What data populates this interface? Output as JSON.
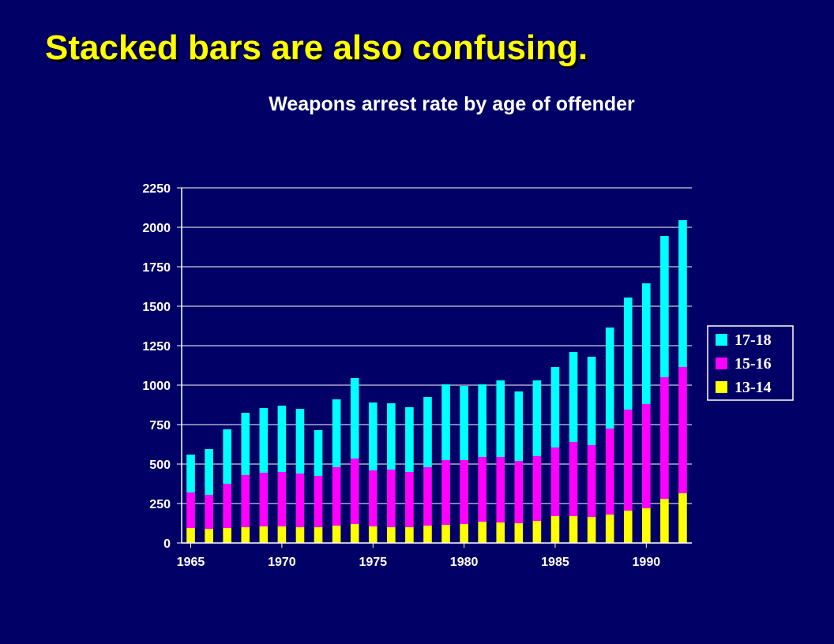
{
  "slide": {
    "title": "Stacked bars are also confusing."
  },
  "chart_data": {
    "type": "bar",
    "stacked": true,
    "title": "Weapons arrest rate by age of offender",
    "xlabel": "",
    "ylabel": "",
    "ylim": [
      0,
      2250
    ],
    "yticks": [
      0,
      250,
      500,
      750,
      1000,
      1250,
      1500,
      1750,
      2000,
      2250
    ],
    "xtick_labels": [
      "1965",
      "1970",
      "1975",
      "1980",
      "1985",
      "1990"
    ],
    "grid": true,
    "legend_position": "right",
    "categories": [
      1965,
      1966,
      1967,
      1968,
      1969,
      1970,
      1971,
      1972,
      1973,
      1974,
      1975,
      1976,
      1977,
      1978,
      1979,
      1980,
      1981,
      1982,
      1983,
      1984,
      1985,
      1986,
      1987,
      1988,
      1989,
      1990,
      1991,
      1992
    ],
    "series": [
      {
        "name": "13-14",
        "color": "#FFFF00",
        "values": [
          95,
          90,
          95,
          100,
          105,
          105,
          100,
          100,
          110,
          120,
          105,
          100,
          100,
          110,
          115,
          120,
          135,
          130,
          125,
          140,
          170,
          170,
          165,
          180,
          205,
          220,
          280,
          315
        ]
      },
      {
        "name": "15-16",
        "color": "#FF00FF",
        "values": [
          225,
          215,
          280,
          330,
          340,
          345,
          340,
          325,
          370,
          415,
          355,
          365,
          350,
          370,
          410,
          405,
          410,
          415,
          395,
          410,
          435,
          470,
          455,
          545,
          640,
          660,
          770,
          800
        ]
      },
      {
        "name": "17-18",
        "color": "#00FFFF",
        "values": [
          240,
          290,
          345,
          395,
          410,
          420,
          410,
          290,
          430,
          510,
          430,
          420,
          410,
          445,
          480,
          470,
          460,
          485,
          440,
          480,
          510,
          570,
          560,
          640,
          710,
          765,
          895,
          930
        ]
      }
    ]
  }
}
